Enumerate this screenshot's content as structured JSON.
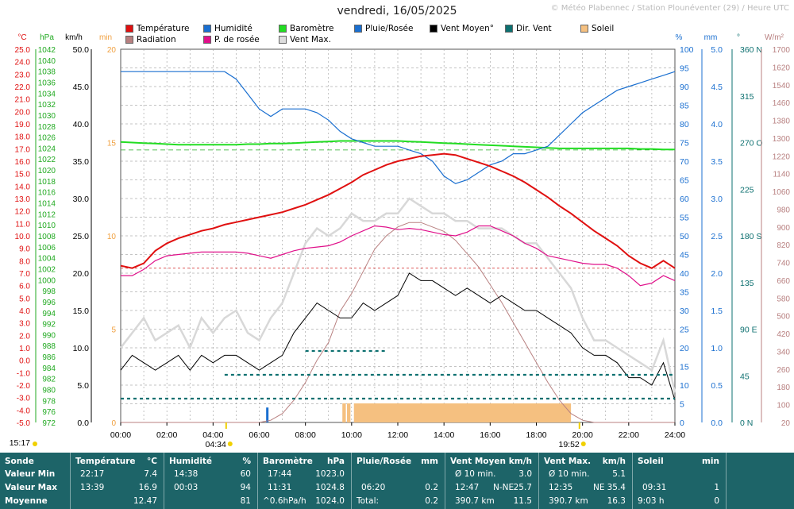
{
  "header": {
    "title": "vendredi, 16/05/2025",
    "credit": "© Météo Plabennec / Station Plounéventer (29) / Heure UTC"
  },
  "legend": [
    {
      "label": "Température",
      "color": "#e01010"
    },
    {
      "label": "Humidité",
      "color": "#1a6fd0"
    },
    {
      "label": "Baromètre",
      "color": "#22dd22"
    },
    {
      "label": "Pluie/Rosée",
      "color": "#1a6fd0"
    },
    {
      "label": "Vent Moyen°",
      "color": "#000000"
    },
    {
      "label": "Dir. Vent",
      "color": "#0d7070"
    },
    {
      "label": "Soleil",
      "color": "#f5c080"
    },
    {
      "label": "Radiation",
      "color": "#b88080"
    },
    {
      "label": "P. de rosée",
      "color": "#e0108a"
    },
    {
      "label": "Vent Max.",
      "color": "#dddddd"
    }
  ],
  "axes": {
    "units": {
      "temp": "°C",
      "baro": "hPa",
      "wind": "km/h",
      "sun": "min",
      "hum": "%",
      "rain": "mm",
      "dir": "°",
      "rad": "W/m²"
    },
    "temp_ticks": [
      "25.0",
      "24.0",
      "23.0",
      "22.0",
      "21.0",
      "20.0",
      "19.0",
      "18.0",
      "17.0",
      "16.0",
      "15.0",
      "14.0",
      "13.0",
      "12.0",
      "11.0",
      "10.0",
      "9.0",
      "8.0",
      "7.0",
      "6.0",
      "5.0",
      "4.0",
      "3.0",
      "2.0",
      "1.0",
      "0.0",
      "-1.0",
      "-2.0",
      "-3.0",
      "-4.0",
      "-5.0"
    ],
    "baro_ticks": [
      "1042",
      "1040",
      "1038",
      "1036",
      "1034",
      "1032",
      "1030",
      "1028",
      "1026",
      "1024",
      "1022",
      "1020",
      "1018",
      "1016",
      "1014",
      "1012",
      "1010",
      "1008",
      "1006",
      "1004",
      "1002",
      "1000",
      "998",
      "996",
      "994",
      "992",
      "990",
      "988",
      "986",
      "984",
      "982",
      "980",
      "978",
      "976",
      "972"
    ],
    "wind_ticks": [
      "50.0",
      "45.0",
      "40.0",
      "35.0",
      "30.0",
      "25.0",
      "20.0",
      "15.0",
      "10.0",
      "5.0",
      "0.0"
    ],
    "sun_ticks": [
      "20",
      "15",
      "10",
      "5",
      "0"
    ],
    "hum_ticks": [
      "100",
      "95",
      "90",
      "85",
      "80",
      "75",
      "70",
      "65",
      "60",
      "55",
      "50",
      "45",
      "40",
      "35",
      "30",
      "25",
      "20",
      "15",
      "10",
      "5",
      "0"
    ],
    "rain_ticks": [
      "5.0",
      "4.5",
      "4.0",
      "3.5",
      "3.0",
      "2.5",
      "2.0",
      "1.5",
      "1.0",
      "0.5",
      "0.0"
    ],
    "dir_ticks": [
      "360 N",
      "315",
      "270 O",
      "225",
      "180 S",
      "135",
      "90 E",
      "45",
      "0 N"
    ],
    "rad_ticks": [
      "1700",
      "1620",
      "1540",
      "1460",
      "1380",
      "1300",
      "1220",
      "1140",
      "1060",
      "980",
      "900",
      "820",
      "740",
      "660",
      "580",
      "500",
      "420",
      "340",
      "260",
      "180",
      "100",
      "20"
    ],
    "time_ticks": [
      "00:00",
      "02:00",
      "04:00",
      "06:00",
      "08:00",
      "10:00",
      "12:00",
      "14:00",
      "16:00",
      "18:00",
      "20:00",
      "22:00",
      "24:00"
    ],
    "sunrise": "04:34",
    "sunset": "19:52",
    "sun_left": "15:17"
  },
  "chart_data": {
    "type": "line",
    "x_unit": "hour UTC",
    "x": [
      0,
      0.5,
      1,
      1.5,
      2,
      2.5,
      3,
      3.5,
      4,
      4.5,
      5,
      5.5,
      6,
      6.5,
      7,
      7.5,
      8,
      8.5,
      9,
      9.5,
      10,
      10.5,
      11,
      11.5,
      12,
      12.5,
      13,
      13.5,
      14,
      14.5,
      15,
      15.5,
      16,
      16.5,
      17,
      17.5,
      18,
      18.5,
      19,
      19.5,
      20,
      20.5,
      21,
      21.5,
      22,
      22.5,
      23,
      23.5,
      24
    ],
    "xlim": [
      0,
      24
    ],
    "series": [
      {
        "name": "Température",
        "unit": "°C",
        "ylim": [
          -5,
          25
        ],
        "values": [
          7.6,
          7.4,
          7.8,
          8.8,
          9.4,
          9.8,
          10.1,
          10.4,
          10.6,
          10.9,
          11.1,
          11.3,
          11.5,
          11.7,
          11.9,
          12.2,
          12.5,
          12.9,
          13.3,
          13.8,
          14.3,
          14.9,
          15.3,
          15.7,
          16.0,
          16.2,
          16.4,
          16.5,
          16.6,
          16.5,
          16.2,
          15.9,
          15.6,
          15.2,
          14.8,
          14.3,
          13.7,
          13.1,
          12.4,
          11.8,
          11.1,
          10.4,
          9.8,
          9.2,
          8.4,
          7.8,
          7.4,
          8.0,
          7.4
        ]
      },
      {
        "name": "P. de rosée",
        "unit": "°C",
        "ylim": [
          -5,
          25
        ],
        "values": [
          6.8,
          6.8,
          7.3,
          8.0,
          8.4,
          8.5,
          8.6,
          8.7,
          8.7,
          8.7,
          8.7,
          8.6,
          8.4,
          8.2,
          8.5,
          8.8,
          9.0,
          9.1,
          9.2,
          9.5,
          10.0,
          10.4,
          10.8,
          10.7,
          10.5,
          10.6,
          10.5,
          10.3,
          10.1,
          10.0,
          10.3,
          10.8,
          10.8,
          10.4,
          10.0,
          9.4,
          9.0,
          8.4,
          8.2,
          8.0,
          7.8,
          7.7,
          7.7,
          7.4,
          6.8,
          6.0,
          6.2,
          6.8,
          6.4
        ]
      },
      {
        "name": "Humidité",
        "unit": "%",
        "ylim": [
          0,
          100
        ],
        "values": [
          94,
          94,
          94,
          94,
          94,
          94,
          94,
          94,
          94,
          94,
          92,
          88,
          84,
          82,
          84,
          84,
          84,
          83,
          81,
          78,
          76,
          75,
          74,
          74,
          74,
          73,
          72,
          70,
          66,
          64,
          65,
          67,
          69,
          70,
          72,
          72,
          73,
          74,
          77,
          80,
          83,
          85,
          87,
          89,
          90,
          91,
          92,
          93,
          94
        ]
      },
      {
        "name": "Baromètre",
        "unit": "hPa",
        "ylim": [
          972,
          1042
        ],
        "values": [
          1024.6,
          1024.5,
          1024.4,
          1024.3,
          1024.2,
          1024.1,
          1024.1,
          1024.1,
          1024.1,
          1024.1,
          1024.1,
          1024.2,
          1024.2,
          1024.3,
          1024.3,
          1024.4,
          1024.5,
          1024.6,
          1024.7,
          1024.8,
          1024.8,
          1024.8,
          1024.8,
          1024.8,
          1024.8,
          1024.7,
          1024.6,
          1024.5,
          1024.4,
          1024.3,
          1024.2,
          1024.1,
          1024.0,
          1023.9,
          1023.8,
          1023.7,
          1023.6,
          1023.5,
          1023.4,
          1023.4,
          1023.4,
          1023.4,
          1023.4,
          1023.4,
          1023.4,
          1023.3,
          1023.3,
          1023.2,
          1023.2
        ]
      },
      {
        "name": "Vent Moyen°",
        "unit": "km/h",
        "ylim": [
          0,
          50
        ],
        "values": [
          7,
          9,
          8,
          7,
          8,
          9,
          7,
          9,
          8,
          9,
          9,
          8,
          7,
          8,
          9,
          12,
          14,
          16,
          15,
          14,
          14,
          16,
          15,
          16,
          17,
          20,
          19,
          19,
          18,
          17,
          18,
          17,
          16,
          17,
          16,
          15,
          15,
          14,
          13,
          12,
          10,
          9,
          9,
          8,
          6,
          6,
          5,
          8,
          3
        ]
      },
      {
        "name": "Vent Max.",
        "unit": "km/h",
        "ylim": [
          0,
          50
        ],
        "values": [
          10,
          12,
          14,
          11,
          12,
          13,
          10,
          14,
          12,
          14,
          15,
          12,
          11,
          14,
          16,
          20,
          24,
          26,
          25,
          26,
          28,
          27,
          27,
          28,
          28,
          30,
          29,
          28,
          28,
          27,
          27,
          26,
          26,
          26,
          25,
          24,
          24,
          22,
          20,
          18,
          14,
          11,
          11,
          10,
          9,
          8,
          7,
          11,
          4
        ]
      },
      {
        "name": "Radiation",
        "unit": "W/m²",
        "ylim": [
          20,
          1700
        ],
        "values": [
          20,
          20,
          20,
          20,
          20,
          20,
          20,
          20,
          20,
          20,
          20,
          20,
          20,
          30,
          60,
          120,
          200,
          300,
          380,
          520,
          600,
          700,
          800,
          860,
          900,
          920,
          920,
          900,
          880,
          840,
          780,
          720,
          640,
          560,
          470,
          380,
          290,
          200,
          120,
          60,
          30,
          20,
          20,
          20,
          20,
          20,
          20,
          20,
          20
        ]
      }
    ],
    "sunshine_min": [
      0,
      0,
      0,
      0,
      0,
      0,
      0,
      0,
      0,
      0,
      0,
      0,
      0,
      0,
      0,
      0,
      0,
      0,
      0,
      0,
      0,
      0,
      0,
      0,
      0,
      0,
      0,
      0,
      0,
      0,
      0,
      0,
      0,
      0,
      0,
      0,
      0,
      0,
      0,
      0,
      0,
      0,
      0,
      0,
      0,
      0,
      0,
      0,
      0
    ],
    "sunshine_blocks": [
      [
        9.6,
        9.75,
        1
      ],
      [
        9.8,
        9.95,
        1
      ],
      [
        10.1,
        19.5,
        1
      ]
    ],
    "rain_bar": {
      "x": 6.35,
      "value": 0.2
    },
    "max_temp_line": 16.9,
    "min_temp_line": 7.4
  },
  "summary": {
    "rows": [
      "Sonde",
      "Valeur Min",
      "Valeur Max",
      "Moyenne"
    ],
    "temp": {
      "header": "Température",
      "unit": "°C",
      "min_time": "22:17",
      "min": "7.4",
      "max_time": "13:39",
      "max": "16.9",
      "avg": "12.47"
    },
    "hum": {
      "header": "Humidité",
      "unit": "%",
      "min_time": "14:38",
      "min": "60",
      "max_time": "00:03",
      "max": "94",
      "avg": "81"
    },
    "baro": {
      "header": "Baromètre",
      "unit": "hPa",
      "min_time": "17:44",
      "min": "1023.0",
      "max_time": "11:31",
      "max": "1024.8",
      "avg_label": "^0.6hPa/h",
      "avg": "1024.0"
    },
    "rain": {
      "header": "Pluie/Rosée",
      "unit": "mm",
      "max_time": "06:20",
      "max": "0.2",
      "avg_label": "Total:",
      "avg": "0.2"
    },
    "wind": {
      "header": "Vent Moyen",
      "unit": "km/h",
      "min_label": "Ø 10 min.",
      "min": "3.0",
      "max_time": "12:47",
      "max_dir": "N-NE",
      "max": "25.7",
      "avg_label": "390.7 km",
      "avg": "11.5"
    },
    "gust": {
      "header": "Vent Max.",
      "unit": "km/h",
      "min_label": "Ø 10 min.",
      "min": "5.1",
      "max_time": "12:35",
      "max_dir": "NE",
      "max": "35.4",
      "avg_label": "390.7 km",
      "avg": "16.3"
    },
    "sun": {
      "header": "Soleil",
      "unit": "min",
      "max_time": "09:31",
      "max": "1",
      "avg_label": "9:03 h",
      "avg": "0"
    }
  }
}
